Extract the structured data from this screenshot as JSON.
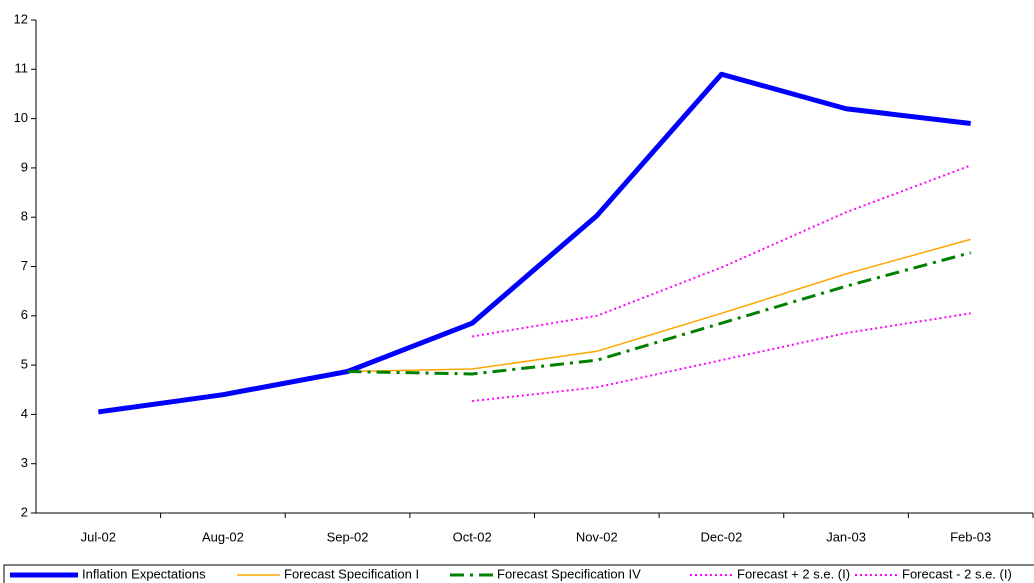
{
  "chart_data": {
    "type": "line",
    "categories": [
      "Jul-02",
      "Aug-02",
      "Sep-02",
      "Oct-02",
      "Nov-02",
      "Dec-02",
      "Jan-03",
      "Feb-03"
    ],
    "series": [
      {
        "name": "Inflation Expectations",
        "color": "#0000ff",
        "values": [
          4.05,
          4.4,
          4.87,
          5.85,
          8.03,
          10.9,
          10.2,
          9.9
        ]
      },
      {
        "name": "Forecast Specification I",
        "color": "#ffa500",
        "values": [
          null,
          null,
          4.87,
          4.92,
          5.28,
          6.05,
          6.85,
          7.55
        ]
      },
      {
        "name": "Forecast Specification IV",
        "color": "#008000",
        "values": [
          null,
          null,
          4.87,
          4.82,
          5.1,
          5.85,
          6.6,
          7.28
        ]
      },
      {
        "name": "Forecast + 2 s.e. (I)",
        "color": "#ff00ff",
        "values": [
          null,
          null,
          null,
          5.58,
          6.0,
          6.98,
          8.1,
          9.05
        ]
      },
      {
        "name": "Forecast - 2 s.e. (I)",
        "color": "#ff00ff",
        "values": [
          null,
          null,
          null,
          4.27,
          4.55,
          5.1,
          5.65,
          6.05
        ]
      }
    ],
    "ylim": [
      2,
      12
    ],
    "yticks": [
      2,
      3,
      4,
      5,
      6,
      7,
      8,
      9,
      10,
      11,
      12
    ],
    "grid": false,
    "legend": "bottom"
  }
}
